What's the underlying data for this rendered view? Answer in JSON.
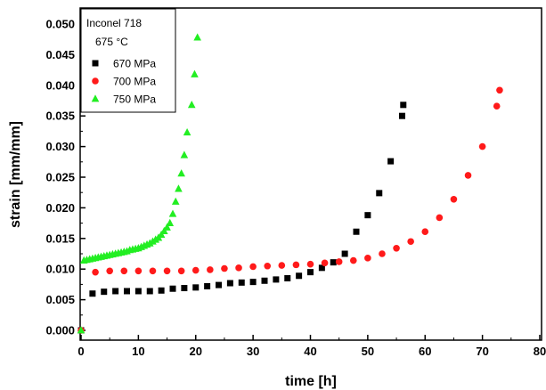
{
  "chart_data": {
    "type": "scatter",
    "xlabel": "time [h]",
    "ylabel": "strain [mm/mm]",
    "xlim": [
      0,
      80
    ],
    "ylim": [
      0,
      0.05
    ],
    "xticks": [
      "0",
      "10",
      "20",
      "30",
      "40",
      "50",
      "60",
      "70",
      "80"
    ],
    "yticks": [
      "0.000",
      "0.005",
      "0.010",
      "0.015",
      "0.020",
      "0.025",
      "0.030",
      "0.035",
      "0.040",
      "0.045",
      "0.050"
    ],
    "legend": {
      "position": "top-left",
      "header_lines": [
        "Inconel 718",
        "675 °C"
      ]
    },
    "series": [
      {
        "name": "670 MPa",
        "marker": "square",
        "color": "#000000",
        "points": [
          [
            0,
            0.0
          ],
          [
            2,
            0.006
          ],
          [
            4,
            0.0063
          ],
          [
            6,
            0.0064
          ],
          [
            8,
            0.0064
          ],
          [
            10,
            0.0064
          ],
          [
            12,
            0.0064
          ],
          [
            14,
            0.0065
          ],
          [
            16,
            0.0068
          ],
          [
            18,
            0.0069
          ],
          [
            20,
            0.007
          ],
          [
            22,
            0.0072
          ],
          [
            24,
            0.0074
          ],
          [
            26,
            0.0077
          ],
          [
            28,
            0.0078
          ],
          [
            30,
            0.0079
          ],
          [
            32,
            0.0081
          ],
          [
            34,
            0.0083
          ],
          [
            36,
            0.0085
          ],
          [
            38,
            0.0089
          ],
          [
            40,
            0.0095
          ],
          [
            42,
            0.0102
          ],
          [
            44,
            0.0111
          ],
          [
            46,
            0.0125
          ],
          [
            48,
            0.0161
          ],
          [
            50,
            0.0188
          ],
          [
            52,
            0.0224
          ],
          [
            54,
            0.0276
          ],
          [
            56,
            0.035
          ],
          [
            56.2,
            0.0368
          ]
        ]
      },
      {
        "name": "700 MPa",
        "marker": "circle",
        "color": "#ff1a1a",
        "points": [
          [
            0,
            0.0
          ],
          [
            2.5,
            0.0095
          ],
          [
            5,
            0.0097
          ],
          [
            7.5,
            0.0097
          ],
          [
            10,
            0.0097
          ],
          [
            12.5,
            0.0097
          ],
          [
            15,
            0.0097
          ],
          [
            17.5,
            0.0097
          ],
          [
            20,
            0.0098
          ],
          [
            22.5,
            0.0099
          ],
          [
            25,
            0.0101
          ],
          [
            27.5,
            0.0102
          ],
          [
            30,
            0.0104
          ],
          [
            32.5,
            0.0105
          ],
          [
            35,
            0.0106
          ],
          [
            37.5,
            0.0107
          ],
          [
            40,
            0.0108
          ],
          [
            42.5,
            0.011
          ],
          [
            45,
            0.0112
          ],
          [
            47.5,
            0.0114
          ],
          [
            50,
            0.0118
          ],
          [
            52.5,
            0.0125
          ],
          [
            55,
            0.0134
          ],
          [
            57.5,
            0.0145
          ],
          [
            60,
            0.0161
          ],
          [
            62.5,
            0.0184
          ],
          [
            65,
            0.0214
          ],
          [
            67.5,
            0.0253
          ],
          [
            70,
            0.03
          ],
          [
            72.5,
            0.0366
          ],
          [
            73,
            0.0392
          ]
        ]
      },
      {
        "name": "750 MPa",
        "marker": "triangle",
        "color": "#22ee22",
        "points": [
          [
            0,
            0.0
          ],
          [
            0.5,
            0.0114
          ],
          [
            1,
            0.0115
          ],
          [
            1.5,
            0.0116
          ],
          [
            2,
            0.0117
          ],
          [
            2.5,
            0.0118
          ],
          [
            3,
            0.0119
          ],
          [
            3.5,
            0.012
          ],
          [
            4,
            0.0121
          ],
          [
            4.5,
            0.0122
          ],
          [
            5,
            0.0123
          ],
          [
            5.5,
            0.0124
          ],
          [
            6,
            0.0125
          ],
          [
            6.5,
            0.0126
          ],
          [
            7,
            0.0127
          ],
          [
            7.5,
            0.0128
          ],
          [
            8,
            0.0129
          ],
          [
            8.5,
            0.0131
          ],
          [
            9,
            0.0132
          ],
          [
            9.5,
            0.0133
          ],
          [
            10,
            0.0134
          ],
          [
            10.5,
            0.0136
          ],
          [
            11,
            0.0138
          ],
          [
            11.5,
            0.014
          ],
          [
            12,
            0.0142
          ],
          [
            12.5,
            0.0145
          ],
          [
            13,
            0.0148
          ],
          [
            13.5,
            0.0151
          ],
          [
            14,
            0.0156
          ],
          [
            14.5,
            0.0162
          ],
          [
            15,
            0.0168
          ],
          [
            15.5,
            0.0175
          ],
          [
            16,
            0.019
          ],
          [
            16.5,
            0.021
          ],
          [
            17,
            0.0231
          ],
          [
            17.5,
            0.0256
          ],
          [
            18,
            0.0286
          ],
          [
            18.5,
            0.0323
          ],
          [
            19.3,
            0.0368
          ],
          [
            19.8,
            0.0418
          ],
          [
            20.3,
            0.0478
          ]
        ]
      }
    ]
  }
}
